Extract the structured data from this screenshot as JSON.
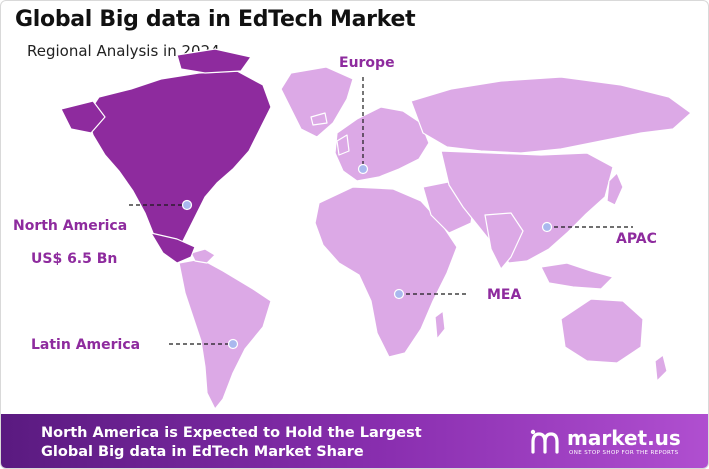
{
  "header": {
    "title": "Global Big data in EdTech Market",
    "subtitle": "Regional Analysis in 2024"
  },
  "regions": {
    "europe": {
      "label": "Europe"
    },
    "north_america": {
      "label": "North America",
      "value": "US$ 6.5 Bn"
    },
    "apac": {
      "label": "APAC"
    },
    "mea": {
      "label": "MEA"
    },
    "latin_america": {
      "label": "Latin America"
    }
  },
  "colors": {
    "highlight": "#8e2b9e",
    "land": "#dca9e6",
    "marker": "#a9b8ee",
    "label": "#8e2b9e"
  },
  "footer": {
    "line1": "North America is Expected to Hold the Largest",
    "line2": "Global Big data in EdTech Market Share"
  },
  "brand": {
    "name": "market.us",
    "tagline": "ONE STOP SHOP FOR THE REPORTS",
    "icon": "market-us-logo-icon"
  }
}
